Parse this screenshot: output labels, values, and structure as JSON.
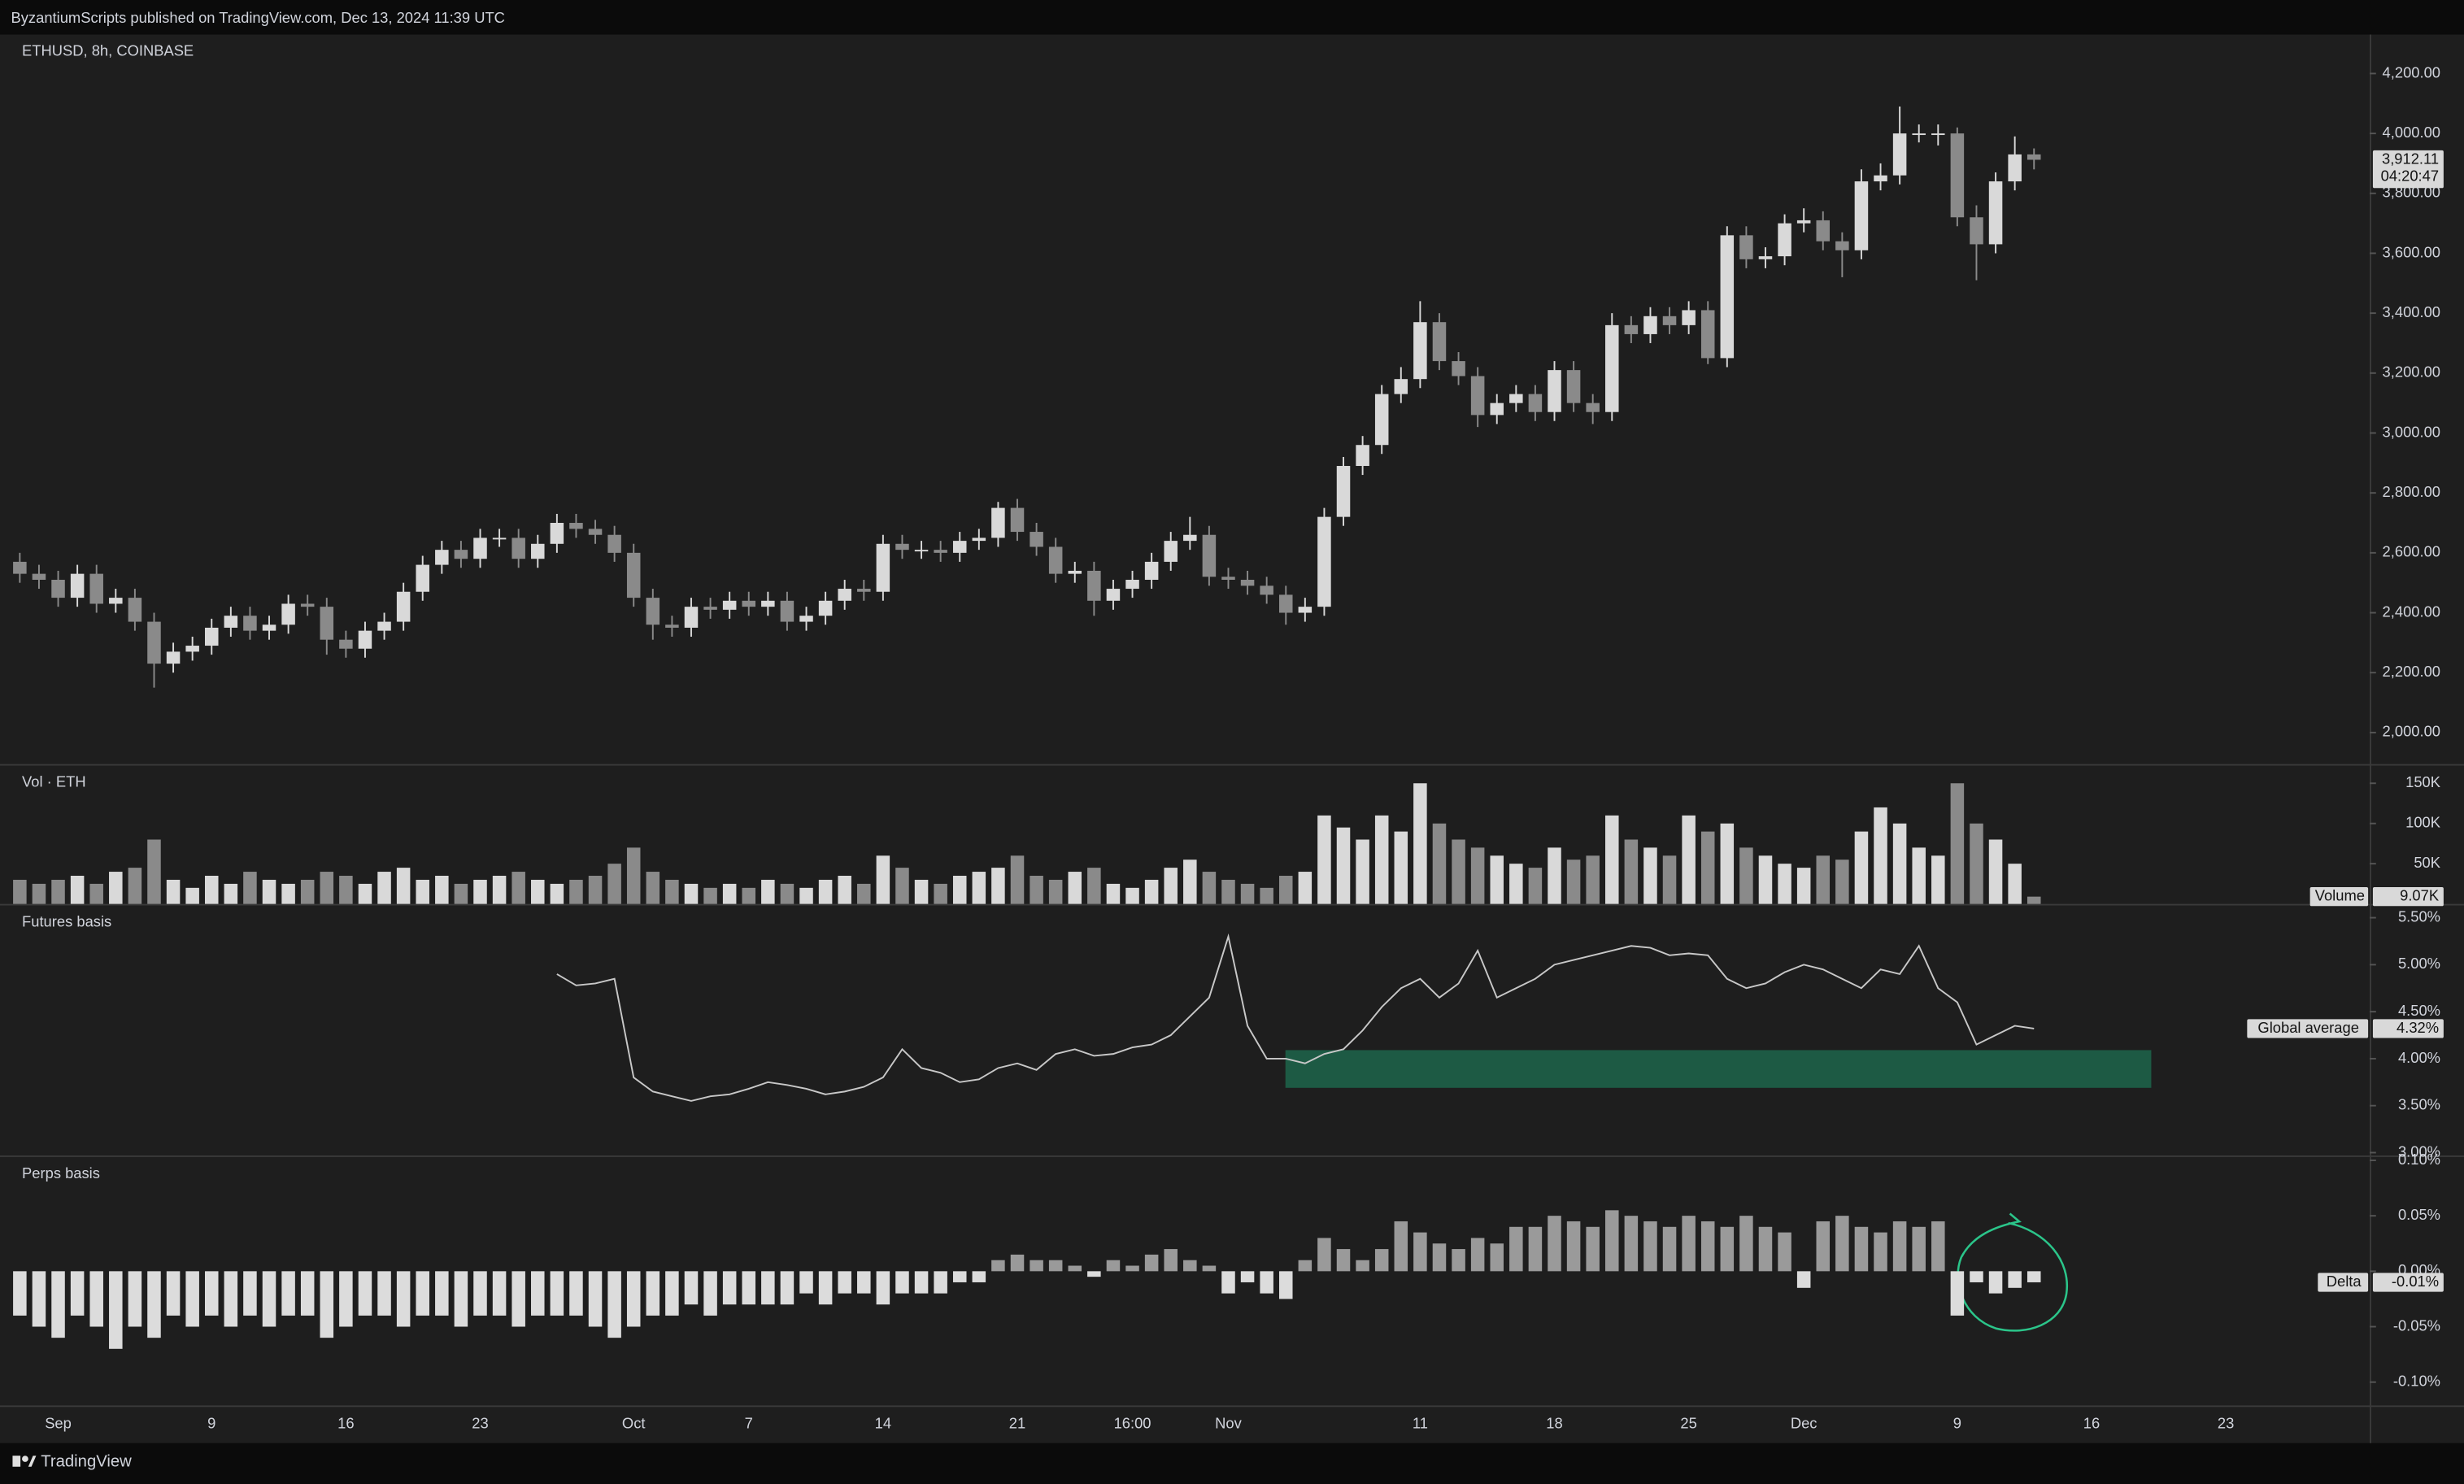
{
  "header": {
    "title": "ByzantiumScripts published on TradingView.com, Dec 13, 2024 11:39 UTC"
  },
  "footer": {
    "brand": "TradingView"
  },
  "chart_data": [
    {
      "type": "candlestick",
      "title": "ETHUSD, 8h, COINBASE",
      "up_color": "#d9d9d9",
      "down_color": "#8a8a8a",
      "categories": [
        null,
        null,
        "Sep",
        null,
        null,
        null,
        null,
        null,
        null,
        null,
        "9",
        null,
        null,
        null,
        null,
        null,
        null,
        "16",
        null,
        null,
        null,
        null,
        null,
        null,
        "23",
        null,
        null,
        null,
        null,
        null,
        null,
        null,
        "Oct",
        null,
        null,
        null,
        null,
        null,
        "7",
        null,
        null,
        null,
        null,
        null,
        null,
        "14",
        null,
        null,
        null,
        null,
        null,
        null,
        "21",
        null,
        null,
        null,
        null,
        null,
        "16:00",
        null,
        null,
        null,
        null,
        "Nov",
        null,
        null,
        null,
        null,
        null,
        null,
        null,
        null,
        null,
        "11",
        null,
        null,
        null,
        null,
        null,
        null,
        "18",
        null,
        null,
        null,
        null,
        null,
        null,
        "25",
        null,
        null,
        null,
        null,
        null,
        "Dec",
        null,
        null,
        null,
        null,
        null,
        null,
        null,
        "9",
        null,
        null,
        null,
        null,
        null,
        null,
        "16",
        null,
        null,
        null,
        null,
        null,
        null,
        "23",
        null,
        null,
        null,
        null,
        null,
        null,
        null
      ],
      "open": [
        2570,
        2530,
        2510,
        2450,
        2530,
        2430,
        2450,
        2370,
        2230,
        2270,
        2290,
        2350,
        2390,
        2340,
        2360,
        2430,
        2420,
        2310,
        2280,
        2340,
        2370,
        2470,
        2560,
        2610,
        2580,
        2650,
        2650,
        2580,
        2630,
        2700,
        2680,
        2660,
        2600,
        2450,
        2360,
        2350,
        2420,
        2410,
        2440,
        2420,
        2440,
        2370,
        2390,
        2440,
        2480,
        2470,
        2630,
        2610,
        2610,
        2600,
        2640,
        2650,
        2750,
        2670,
        2620,
        2530,
        2540,
        2440,
        2480,
        2510,
        2570,
        2640,
        2660,
        2520,
        2510,
        2490,
        2460,
        2400,
        2420,
        2720,
        2890,
        2960,
        3130,
        3180,
        3370,
        3240,
        3190,
        3060,
        3100,
        3130,
        3070,
        3210,
        3100,
        3070,
        3360,
        3330,
        3390,
        3360,
        3410,
        3250,
        3660,
        3580,
        3590,
        3700,
        3710,
        3640,
        3610,
        3840,
        3860,
        4000,
        4000,
        4000,
        3720,
        3630,
        3840,
        3930,
        null,
        null,
        null,
        null,
        null,
        null,
        null,
        null,
        null,
        null,
        null,
        null,
        null,
        null,
        null,
        null,
        null
      ],
      "high": [
        2600,
        2560,
        2540,
        2560,
        2560,
        2480,
        2480,
        2400,
        2300,
        2320,
        2380,
        2420,
        2420,
        2390,
        2460,
        2460,
        2450,
        2340,
        2370,
        2400,
        2500,
        2590,
        2640,
        2640,
        2680,
        2680,
        2680,
        2660,
        2730,
        2730,
        2710,
        2690,
        2630,
        2480,
        2390,
        2450,
        2450,
        2470,
        2470,
        2470,
        2470,
        2420,
        2470,
        2510,
        2510,
        2660,
        2660,
        2640,
        2640,
        2670,
        2680,
        2770,
        2780,
        2700,
        2650,
        2570,
        2570,
        2510,
        2540,
        2600,
        2670,
        2720,
        2690,
        2550,
        2540,
        2520,
        2490,
        2450,
        2750,
        2920,
        2990,
        3160,
        3220,
        3440,
        3400,
        3270,
        3220,
        3130,
        3160,
        3160,
        3240,
        3240,
        3130,
        3400,
        3390,
        3420,
        3420,
        3440,
        3440,
        3690,
        3690,
        3620,
        3730,
        3750,
        3740,
        3670,
        3880,
        3900,
        4090,
        4030,
        4030,
        4020,
        3760,
        3870,
        3990,
        3950,
        null,
        null,
        null,
        null,
        null,
        null,
        null,
        null,
        null,
        null,
        null,
        null,
        null,
        null,
        null,
        null,
        null
      ],
      "low": [
        2500,
        2480,
        2420,
        2420,
        2400,
        2400,
        2340,
        2150,
        2200,
        2240,
        2260,
        2320,
        2310,
        2310,
        2330,
        2390,
        2260,
        2250,
        2250,
        2310,
        2340,
        2440,
        2530,
        2550,
        2550,
        2620,
        2550,
        2550,
        2600,
        2650,
        2630,
        2570,
        2420,
        2310,
        2320,
        2320,
        2380,
        2380,
        2390,
        2390,
        2340,
        2340,
        2360,
        2410,
        2440,
        2440,
        2580,
        2580,
        2570,
        2570,
        2610,
        2620,
        2640,
        2590,
        2500,
        2500,
        2390,
        2410,
        2450,
        2480,
        2540,
        2610,
        2490,
        2480,
        2460,
        2430,
        2360,
        2370,
        2390,
        2690,
        2860,
        2930,
        3100,
        3150,
        3210,
        3160,
        3020,
        3030,
        3070,
        3040,
        3040,
        3070,
        3030,
        3040,
        3300,
        3300,
        3330,
        3330,
        3230,
        3220,
        3550,
        3550,
        3560,
        3670,
        3610,
        3520,
        3580,
        3810,
        3830,
        3970,
        3960,
        3690,
        3510,
        3600,
        3810,
        3880,
        null,
        null,
        null,
        null,
        null,
        null,
        null,
        null,
        null,
        null,
        null,
        null,
        null,
        null,
        null,
        null,
        null
      ],
      "close": [
        2530,
        2510,
        2450,
        2530,
        2430,
        2450,
        2370,
        2230,
        2270,
        2290,
        2350,
        2390,
        2340,
        2360,
        2430,
        2420,
        2310,
        2280,
        2340,
        2370,
        2470,
        2560,
        2610,
        2580,
        2650,
        2650,
        2580,
        2630,
        2700,
        2680,
        2660,
        2600,
        2450,
        2360,
        2350,
        2420,
        2410,
        2440,
        2420,
        2440,
        2370,
        2390,
        2440,
        2480,
        2470,
        2630,
        2610,
        2610,
        2600,
        2640,
        2650,
        2750,
        2670,
        2620,
        2530,
        2540,
        2440,
        2480,
        2510,
        2570,
        2640,
        2660,
        2520,
        2510,
        2490,
        2460,
        2400,
        2420,
        2720,
        2890,
        2960,
        3130,
        3180,
        3370,
        3240,
        3190,
        3060,
        3100,
        3130,
        3070,
        3210,
        3100,
        3070,
        3360,
        3330,
        3390,
        3360,
        3410,
        3250,
        3660,
        3580,
        3590,
        3700,
        3710,
        3640,
        3610,
        3840,
        3860,
        4000,
        4000,
        4000,
        3720,
        3630,
        3840,
        3930,
        3912.11,
        null,
        null,
        null,
        null,
        null,
        null,
        null,
        null,
        null,
        null,
        null,
        null,
        null,
        null,
        null,
        null,
        null
      ],
      "ylim": [
        1895,
        4330
      ],
      "yticks": [
        {
          "value": 2000,
          "label": "2,000.00"
        },
        {
          "value": 2200,
          "label": "2,200.00"
        },
        {
          "value": 2400,
          "label": "2,400.00"
        },
        {
          "value": 2600,
          "label": "2,600.00"
        },
        {
          "value": 2800,
          "label": "2,800.00"
        },
        {
          "value": 3000,
          "label": "3,000.00"
        },
        {
          "value": 3200,
          "label": "3,200.00"
        },
        {
          "value": 3400,
          "label": "3,400.00"
        },
        {
          "value": 3600,
          "label": "3,600.00"
        },
        {
          "value": 3800,
          "label": "3,800.00"
        },
        {
          "value": 4000,
          "label": "4,000.00"
        },
        {
          "value": 4200,
          "label": "4,200.00"
        }
      ],
      "tag": {
        "value": 3912.11,
        "label": "3,912.11",
        "countdown": "04:20:47"
      }
    },
    {
      "type": "bar",
      "title": "Vol · ETH",
      "up_color": "#d9d9d9",
      "down_color": "#8a8a8a",
      "values": [
        30000,
        25000,
        30000,
        35000,
        25000,
        40000,
        45000,
        80000,
        30000,
        20000,
        35000,
        25000,
        40000,
        30000,
        25000,
        30000,
        40000,
        35000,
        25000,
        40000,
        45000,
        30000,
        35000,
        25000,
        30000,
        35000,
        40000,
        30000,
        25000,
        30000,
        35000,
        50000,
        70000,
        40000,
        30000,
        25000,
        20000,
        25000,
        20000,
        30000,
        25000,
        20000,
        30000,
        35000,
        25000,
        60000,
        45000,
        30000,
        25000,
        35000,
        40000,
        45000,
        60000,
        35000,
        30000,
        40000,
        45000,
        25000,
        20000,
        30000,
        45000,
        55000,
        40000,
        30000,
        25000,
        20000,
        35000,
        40000,
        110000,
        95000,
        80000,
        110000,
        90000,
        150000,
        100000,
        80000,
        70000,
        60000,
        50000,
        45000,
        70000,
        55000,
        60000,
        110000,
        80000,
        70000,
        60000,
        110000,
        90000,
        100000,
        70000,
        60000,
        50000,
        45000,
        60000,
        55000,
        90000,
        120000,
        100000,
        70000,
        60000,
        150000,
        100000,
        80000,
        50000,
        9070,
        null,
        null,
        null,
        null,
        null,
        null,
        null,
        null,
        null,
        null,
        null,
        null,
        null,
        null,
        null,
        null,
        null
      ],
      "ylim": [
        0,
        172000
      ],
      "yticks": [
        {
          "value": 50000,
          "label": "50K"
        },
        {
          "value": 100000,
          "label": "100K"
        },
        {
          "value": 150000,
          "label": "150K"
        }
      ],
      "tag": {
        "name": "Volume",
        "value": 9070,
        "label": "9.07K"
      }
    },
    {
      "type": "line",
      "title": "Futures basis",
      "color": "#c8c8c8",
      "values": [
        null,
        null,
        null,
        null,
        null,
        null,
        null,
        null,
        null,
        null,
        null,
        null,
        null,
        null,
        null,
        null,
        null,
        null,
        null,
        null,
        null,
        null,
        null,
        null,
        null,
        null,
        null,
        null,
        4.9,
        4.78,
        4.8,
        4.85,
        3.8,
        3.65,
        3.6,
        3.55,
        3.6,
        3.62,
        3.68,
        3.75,
        3.72,
        3.68,
        3.62,
        3.65,
        3.7,
        3.8,
        4.1,
        3.9,
        3.85,
        3.75,
        3.78,
        3.9,
        3.95,
        3.88,
        4.05,
        4.1,
        4.03,
        4.05,
        4.12,
        4.15,
        4.25,
        4.45,
        4.65,
        5.3,
        4.35,
        4.0,
        4.0,
        3.95,
        4.05,
        4.1,
        4.3,
        4.55,
        4.75,
        4.85,
        4.65,
        4.8,
        5.15,
        4.65,
        4.75,
        4.85,
        5.0,
        5.05,
        5.1,
        5.15,
        5.2,
        5.18,
        5.1,
        5.12,
        5.1,
        4.85,
        4.75,
        4.8,
        4.92,
        5.0,
        4.95,
        4.85,
        4.75,
        4.95,
        4.9,
        5.2,
        4.75,
        4.6,
        4.15,
        4.25,
        4.35,
        4.32,
        null,
        null,
        null,
        null,
        null,
        null,
        null,
        null,
        null,
        null,
        null,
        null,
        null,
        null,
        null,
        null,
        null
      ],
      "ylim": [
        2.97,
        5.63
      ],
      "yticks": [
        {
          "value": 3.0,
          "label": "3.00%"
        },
        {
          "value": 3.5,
          "label": "3.50%"
        },
        {
          "value": 4.0,
          "label": "4.00%"
        },
        {
          "value": 4.5,
          "label": "4.50%"
        },
        {
          "value": 5.0,
          "label": "5.00%"
        },
        {
          "value": 5.5,
          "label": "5.50%"
        }
      ],
      "tag": {
        "name": "Global average",
        "value": 4.32,
        "label": "4.32%"
      }
    },
    {
      "type": "bar",
      "title": "Perps basis",
      "positive_color": "#9a9a9a",
      "negative_color": "#dcdcdc",
      "values": [
        -0.04,
        -0.05,
        -0.06,
        -0.04,
        -0.05,
        -0.07,
        -0.05,
        -0.06,
        -0.04,
        -0.05,
        -0.04,
        -0.05,
        -0.04,
        -0.05,
        -0.04,
        -0.04,
        -0.06,
        -0.05,
        -0.04,
        -0.04,
        -0.05,
        -0.04,
        -0.04,
        -0.05,
        -0.04,
        -0.04,
        -0.05,
        -0.04,
        -0.04,
        -0.04,
        -0.05,
        -0.06,
        -0.05,
        -0.04,
        -0.04,
        -0.03,
        -0.04,
        -0.03,
        -0.03,
        -0.03,
        -0.03,
        -0.02,
        -0.03,
        -0.02,
        -0.02,
        -0.03,
        -0.02,
        -0.02,
        -0.02,
        -0.01,
        -0.01,
        0.01,
        0.015,
        0.01,
        0.01,
        0.005,
        -0.005,
        0.01,
        0.005,
        0.015,
        0.02,
        0.01,
        0.005,
        -0.02,
        -0.01,
        -0.02,
        -0.025,
        0.01,
        0.03,
        0.02,
        0.01,
        0.02,
        0.045,
        0.035,
        0.025,
        0.02,
        0.03,
        0.025,
        0.04,
        0.04,
        0.05,
        0.045,
        0.04,
        0.055,
        0.05,
        0.045,
        0.04,
        0.05,
        0.045,
        0.04,
        0.05,
        0.04,
        0.035,
        -0.015,
        0.045,
        0.05,
        0.04,
        0.035,
        0.045,
        0.04,
        0.045,
        -0.04,
        -0.01,
        -0.02,
        -0.015,
        -0.01,
        null,
        null,
        null,
        null,
        null,
        null,
        null,
        null,
        null,
        null,
        null,
        null,
        null,
        null,
        null,
        null,
        null
      ],
      "ylim": [
        -0.121,
        0.103
      ],
      "yticks": [
        {
          "value": -0.1,
          "label": "-0.10%"
        },
        {
          "value": -0.05,
          "label": "-0.05%"
        },
        {
          "value": 0,
          "label": "0.00%"
        },
        {
          "value": 0.05,
          "label": "0.05%"
        },
        {
          "value": 0.1,
          "label": "0.10%"
        }
      ],
      "tag": {
        "name": "Delta",
        "value": -0.01,
        "label": "-0.01%"
      }
    }
  ]
}
